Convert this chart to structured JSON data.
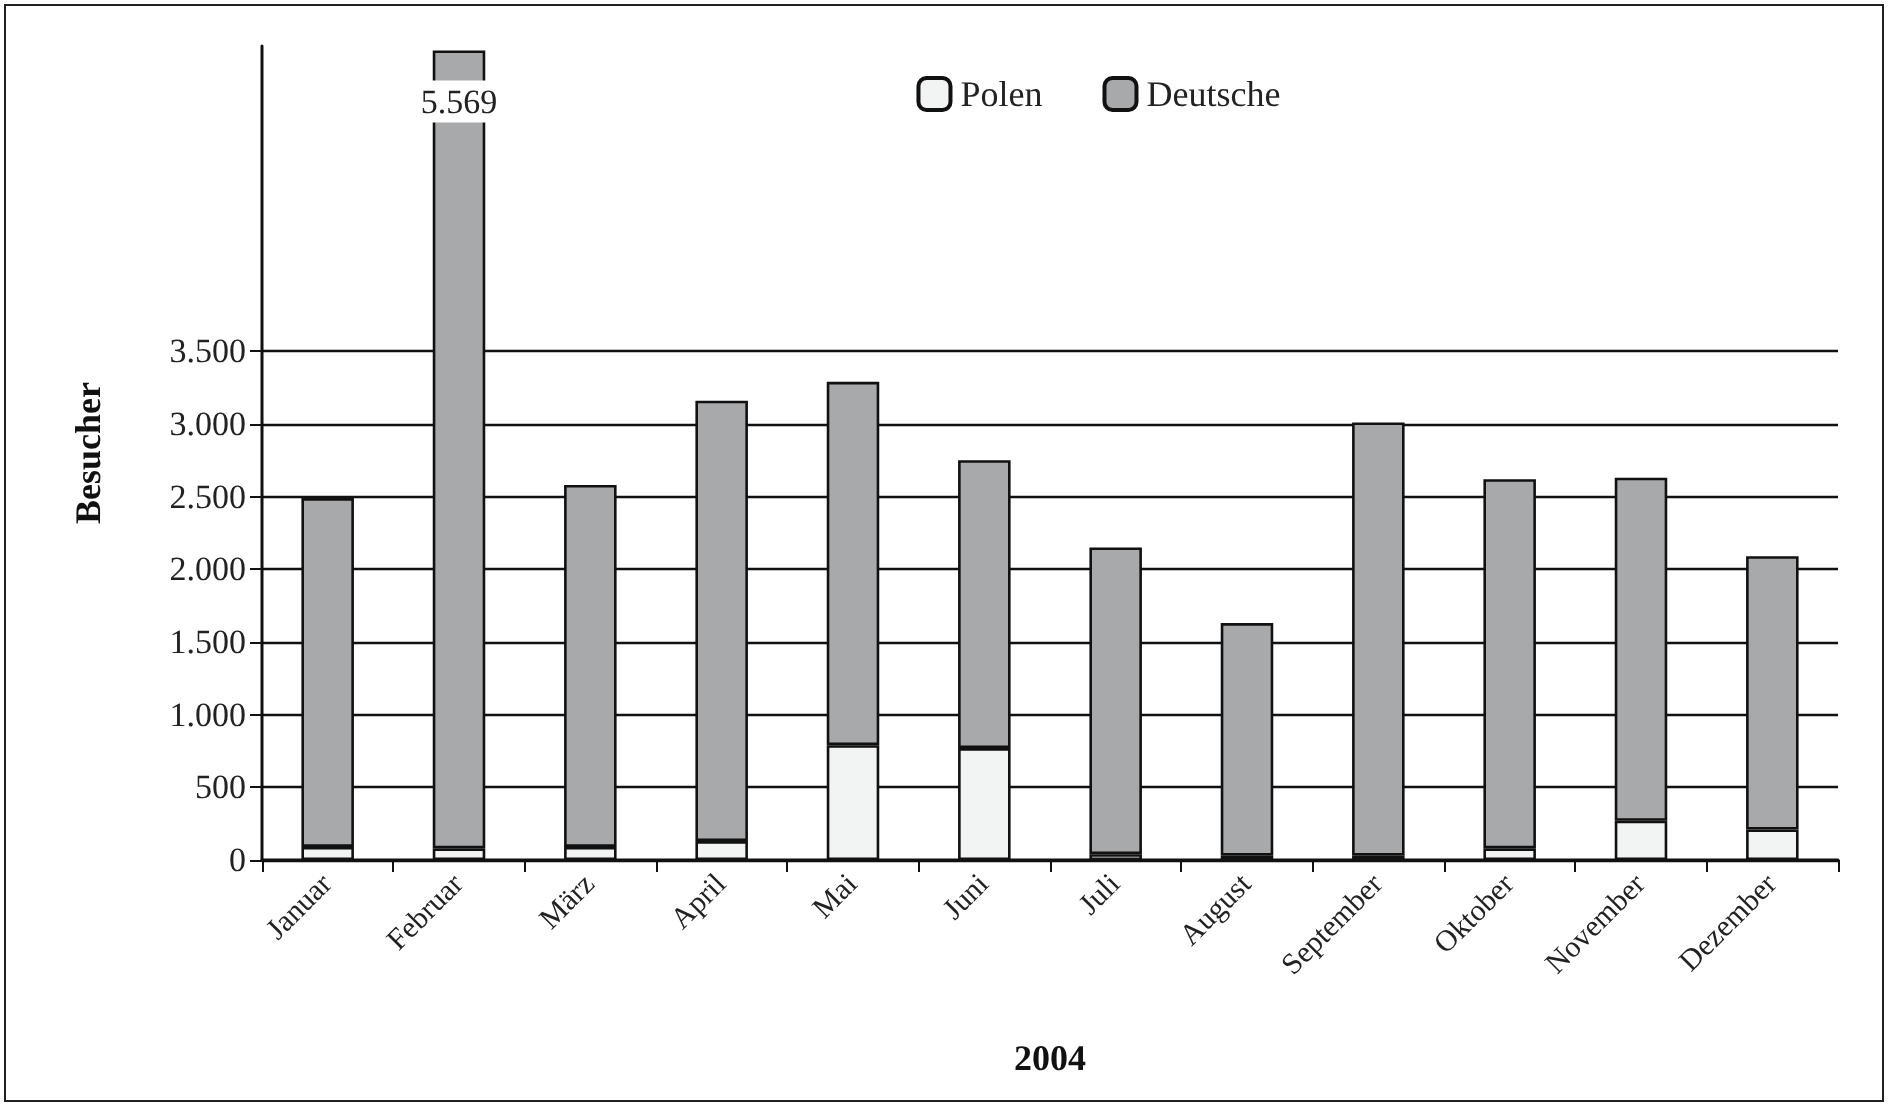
{
  "chart_data": {
    "type": "bar",
    "stacked": true,
    "xlabel": "2004",
    "ylabel": "Besucher",
    "categories": [
      "Januar",
      "Februar",
      "März",
      "April",
      "Mai",
      "Juni",
      "Juli",
      "August",
      "September",
      "Oktober",
      "November",
      "Dezember"
    ],
    "series": [
      {
        "name": "Polen",
        "color": "#f2f3f3",
        "values": [
          90,
          80,
          90,
          130,
          790,
          770,
          40,
          30,
          30,
          80,
          270,
          210
        ]
      },
      {
        "name": "Deutsche",
        "color": "#a8a9ab",
        "values": [
          2400,
          5489,
          2490,
          3030,
          2500,
          1980,
          2110,
          1600,
          2980,
          2540,
          2360,
          1880
        ]
      }
    ],
    "totals": [
      null,
      "5.569",
      null,
      null,
      null,
      null,
      null,
      null,
      null,
      null,
      null,
      null
    ],
    "ylim": [
      0,
      5600
    ],
    "yticks": [
      0,
      500,
      {
        "value": 1000,
        "label": "1.000"
      },
      {
        "value": 1500,
        "label": "1.500"
      },
      {
        "value": 2000,
        "label": "2.000"
      },
      {
        "value": 2500,
        "label": "2.500"
      },
      {
        "value": 3000,
        "label": "3.000"
      },
      {
        "value": 3500,
        "label": "3.500"
      }
    ],
    "grid": "y",
    "legend": "top"
  }
}
